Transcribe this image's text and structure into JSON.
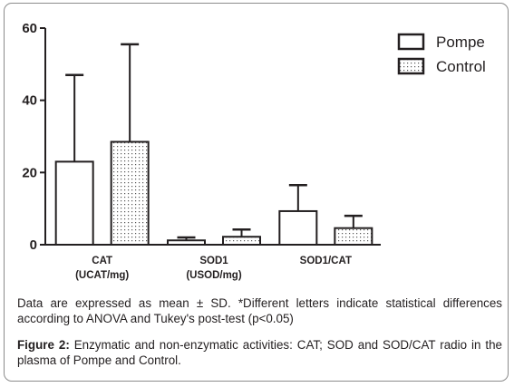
{
  "chart_data": {
    "type": "bar",
    "categories": [
      {
        "line1": "CAT",
        "line2": "(UCAT/mg)"
      },
      {
        "line1": "SOD1",
        "line2": "(USOD/mg)"
      },
      {
        "line1": "SOD1/CAT",
        "line2": ""
      }
    ],
    "series": [
      {
        "name": "Pompe",
        "values": [
          23,
          1.2,
          9.3
        ],
        "sd": [
          24,
          0.8,
          7.2
        ],
        "fill": "white"
      },
      {
        "name": "Control",
        "values": [
          28.5,
          2.2,
          4.6
        ],
        "sd": [
          27,
          2.0,
          3.4
        ],
        "fill": "dotted"
      }
    ],
    "ylim": [
      0,
      60
    ],
    "yticks": [
      "0",
      "20",
      "40",
      "60"
    ],
    "legend_position": "top-right",
    "colors": {
      "bar_stroke": "#231f20",
      "dot": "#555555",
      "frame": "#8c8c8c"
    }
  },
  "caption": {
    "note": "Data are expressed as mean ± SD. *Different letters indicate statistical differences according to ANOVA and Tukey's post-test (p<0.05)",
    "figure_label": "Figure 2:",
    "figure_text": " Enzymatic and non-enzymatic activities: CAT; SOD and SOD/CAT radio in the plasma of Pompe and Control."
  }
}
